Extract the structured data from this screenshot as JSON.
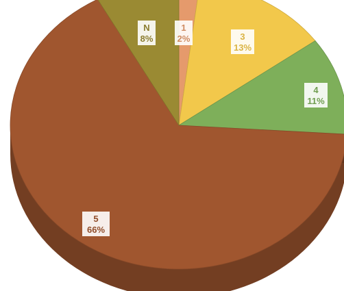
{
  "chart_data": {
    "type": "pie",
    "style": "3d",
    "slices": [
      {
        "label": "1",
        "value": 2,
        "value_label": "2%",
        "color": "#E59A6C"
      },
      {
        "label": "3",
        "value": 13,
        "value_label": "13%",
        "color": "#F2C84B"
      },
      {
        "label": "4",
        "value": 11,
        "value_label": "11%",
        "color": "#7EAF5A"
      },
      {
        "label": "5",
        "value": 66,
        "value_label": "66%",
        "color": "#A0562F"
      },
      {
        "label": "N",
        "value": 8,
        "value_label": "8%",
        "color": "#9A8A33"
      }
    ],
    "legend": "none"
  }
}
